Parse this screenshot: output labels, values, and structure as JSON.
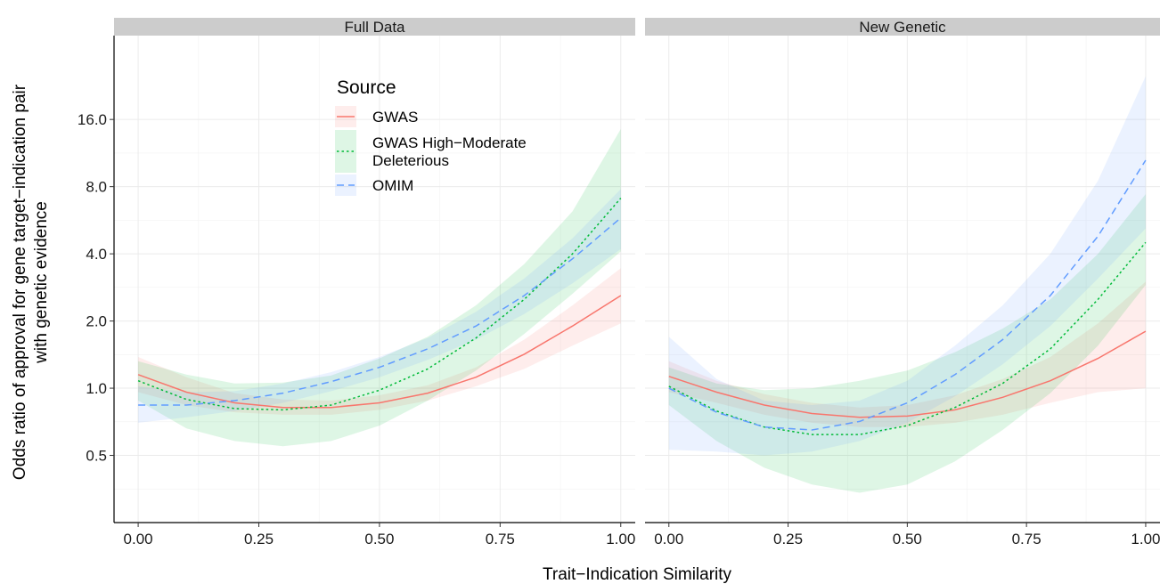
{
  "chart_data": {
    "type": "line",
    "title": "",
    "xlabel": "Trait−Indication Similarity",
    "ylabel_lines": [
      "Odds ratio of approval for gene target−indication pair",
      "with genetic evidence"
    ],
    "xlim": [
      -0.05,
      1.03
    ],
    "xticks": [
      0,
      0.25,
      0.5,
      0.75,
      1
    ],
    "xtick_labels": [
      "0.00",
      "0.25",
      "0.50",
      "0.75",
      "1.00"
    ],
    "y_scale": "log2",
    "ylim": [
      0.25,
      38
    ],
    "yticks": [
      0.5,
      1,
      2,
      4,
      8,
      16
    ],
    "ytick_labels": [
      "0.5",
      "1.0",
      "2.0",
      "4.0",
      "8.0",
      "16.0"
    ],
    "grid": true,
    "legend": {
      "title": "Source",
      "position": "inside-top-left",
      "entries": [
        {
          "lines": [
            "GWAS"
          ],
          "color": "#F8766D",
          "dash": "solid"
        },
        {
          "lines": [
            "GWAS High−Moderate",
            "Deleterious"
          ],
          "color": "#00BA38",
          "dash": "dotted"
        },
        {
          "lines": [
            "OMIM"
          ],
          "color": "#619CFF",
          "dash": "dashed"
        }
      ]
    },
    "panels": [
      {
        "strip": "Full Data",
        "series": [
          {
            "name": "GWAS",
            "color": "#F8766D",
            "dash": "solid",
            "x": [
              0,
              0.1,
              0.2,
              0.3,
              0.4,
              0.5,
              0.6,
              0.7,
              0.8,
              0.9,
              1.0
            ],
            "y": [
              1.15,
              0.96,
              0.86,
              0.82,
              0.82,
              0.86,
              0.95,
              1.12,
              1.42,
              1.9,
              2.6
            ],
            "lo": [
              0.96,
              0.84,
              0.78,
              0.76,
              0.76,
              0.8,
              0.88,
              1.02,
              1.22,
              1.55,
              1.95
            ],
            "hi": [
              1.38,
              1.12,
              0.95,
              0.89,
              0.88,
              0.93,
              1.03,
              1.24,
              1.65,
              2.35,
              3.45
            ]
          },
          {
            "name": "GWAS High−Moderate Deleterious",
            "color": "#00BA38",
            "dash": "dotted",
            "x": [
              0,
              0.1,
              0.2,
              0.3,
              0.4,
              0.5,
              0.6,
              0.7,
              0.8,
              0.9,
              1.0
            ],
            "y": [
              1.08,
              0.89,
              0.81,
              0.8,
              0.84,
              0.98,
              1.22,
              1.68,
              2.5,
              4.0,
              7.1
            ],
            "lo": [
              0.88,
              0.66,
              0.58,
              0.55,
              0.58,
              0.68,
              0.88,
              1.2,
              1.75,
              2.65,
              4.1
            ],
            "hi": [
              1.32,
              1.15,
              1.05,
              1.06,
              1.14,
              1.36,
              1.7,
              2.35,
              3.6,
              6.2,
              14.5
            ]
          },
          {
            "name": "OMIM",
            "color": "#619CFF",
            "dash": "dashed",
            "x": [
              0,
              0.1,
              0.2,
              0.3,
              0.4,
              0.5,
              0.6,
              0.7,
              0.8,
              0.9,
              1.0
            ],
            "y": [
              0.84,
              0.84,
              0.88,
              0.95,
              1.07,
              1.24,
              1.5,
              1.9,
              2.6,
              3.8,
              5.8
            ],
            "lo": [
              0.7,
              0.74,
              0.79,
              0.86,
              0.97,
              1.12,
              1.34,
              1.65,
              2.15,
              2.95,
              4.2
            ],
            "hi": [
              1.02,
              0.96,
              0.97,
              1.05,
              1.18,
              1.38,
              1.68,
              2.2,
              3.1,
              4.7,
              7.8
            ]
          }
        ]
      },
      {
        "strip": "New Genetic",
        "series": [
          {
            "name": "GWAS",
            "color": "#F8766D",
            "dash": "solid",
            "x": [
              0,
              0.1,
              0.2,
              0.3,
              0.4,
              0.5,
              0.6,
              0.7,
              0.8,
              0.9,
              1.0
            ],
            "y": [
              1.13,
              0.96,
              0.84,
              0.77,
              0.74,
              0.75,
              0.8,
              0.91,
              1.08,
              1.36,
              1.8
            ],
            "lo": [
              0.96,
              0.86,
              0.76,
              0.7,
              0.67,
              0.67,
              0.7,
              0.76,
              0.86,
              0.96,
              1.0
            ],
            "hi": [
              1.32,
              1.08,
              0.94,
              0.86,
              0.82,
              0.84,
              0.93,
              1.1,
              1.38,
              1.95,
              3.0
            ]
          },
          {
            "name": "GWAS High−Moderate Deleterious",
            "color": "#00BA38",
            "dash": "dotted",
            "x": [
              0,
              0.1,
              0.2,
              0.3,
              0.4,
              0.5,
              0.6,
              0.7,
              0.8,
              0.9,
              1.0
            ],
            "y": [
              1.02,
              0.79,
              0.67,
              0.62,
              0.62,
              0.68,
              0.82,
              1.05,
              1.5,
              2.5,
              4.5
            ],
            "lo": [
              0.84,
              0.58,
              0.44,
              0.37,
              0.34,
              0.37,
              0.47,
              0.65,
              0.95,
              1.55,
              2.9
            ],
            "hi": [
              1.24,
              1.05,
              0.98,
              1.0,
              1.08,
              1.2,
              1.45,
              1.85,
              2.5,
              4.0,
              7.4
            ]
          },
          {
            "name": "OMIM",
            "color": "#619CFF",
            "dash": "dashed",
            "x": [
              0,
              0.1,
              0.2,
              0.3,
              0.4,
              0.5,
              0.6,
              0.7,
              0.8,
              0.9,
              1.0
            ],
            "y": [
              1.0,
              0.78,
              0.67,
              0.65,
              0.71,
              0.86,
              1.15,
              1.65,
              2.6,
              4.8,
              10.5
            ],
            "lo": [
              0.53,
              0.52,
              0.5,
              0.52,
              0.58,
              0.7,
              0.92,
              1.28,
              1.9,
              3.1,
              5.2
            ],
            "hi": [
              1.7,
              1.1,
              0.88,
              0.84,
              0.88,
              1.08,
              1.55,
              2.35,
              4.0,
              8.5,
              25.0
            ]
          }
        ]
      }
    ]
  }
}
